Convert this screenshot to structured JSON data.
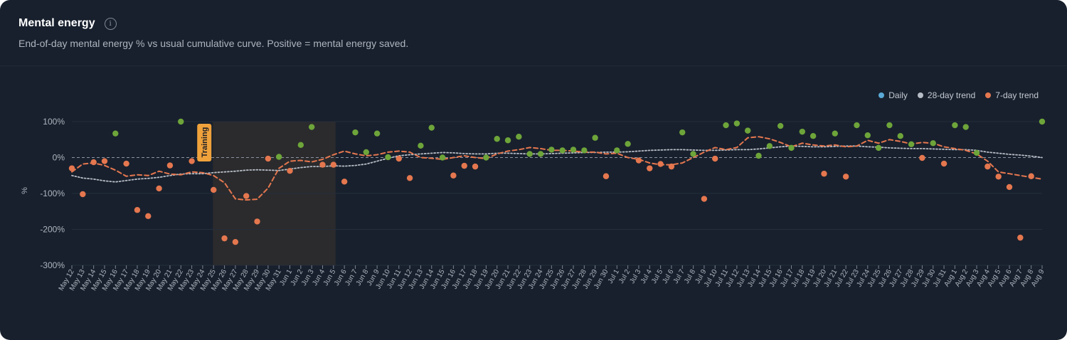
{
  "header": {
    "title": "Mental energy",
    "subtitle": "End-of-day mental energy % vs usual cumulative curve. Positive = mental energy saved."
  },
  "legend": [
    {
      "label": "Daily",
      "color": "#5aa9d6"
    },
    {
      "label": "28-day trend",
      "color": "#b7bdc6"
    },
    {
      "label": "7-day trend",
      "color": "#e5774f"
    }
  ],
  "colors": {
    "positive_point": "#6ea53a",
    "negative_point": "#e5774f",
    "trend28": "#b7bdc6",
    "trend7": "#e5774f",
    "training_band": "#2b2b2d",
    "training_label_bg": "#f0a23b"
  },
  "chart_data": {
    "type": "scatter",
    "title": "Mental energy",
    "ylabel": "%",
    "ylim": [
      -300,
      100
    ],
    "yticks": [
      100,
      0,
      -100,
      -200,
      -300
    ],
    "ytick_labels": [
      "100%",
      "0%",
      "-100%",
      "-200%",
      "-300%"
    ],
    "x": [
      "May 12",
      "May 13",
      "May 14",
      "May 15",
      "May 16",
      "May 17",
      "May 18",
      "May 19",
      "May 20",
      "May 21",
      "May 22",
      "May 23",
      "May 24",
      "May 25",
      "May 26",
      "May 27",
      "May 28",
      "May 29",
      "May 30",
      "May 31",
      "Jun 1",
      "Jun 2",
      "Jun 3",
      "Jun 4",
      "Jun 5",
      "Jun 6",
      "Jun 7",
      "Jun 8",
      "Jun 9",
      "Jun 10",
      "Jun 11",
      "Jun 12",
      "Jun 13",
      "Jun 14",
      "Jun 15",
      "Jun 16",
      "Jun 17",
      "Jun 18",
      "Jun 19",
      "Jun 20",
      "Jun 21",
      "Jun 22",
      "Jun 23",
      "Jun 24",
      "Jun 25",
      "Jun 26",
      "Jun 27",
      "Jun 28",
      "Jun 29",
      "Jun 30",
      "Jul 1",
      "Jul 2",
      "Jul 3",
      "Jul 4",
      "Jul 5",
      "Jul 6",
      "Jul 7",
      "Jul 8",
      "Jul 9",
      "Jul 10",
      "Jul 11",
      "Jul 12",
      "Jul 13",
      "Jul 14",
      "Jul 15",
      "Jul 16",
      "Jul 17",
      "Jul 18",
      "Jul 19",
      "Jul 20",
      "Jul 21",
      "Jul 22",
      "Jul 23",
      "Jul 24",
      "Jul 25",
      "Jul 26",
      "Jul 27",
      "Jul 28",
      "Jul 29",
      "Jul 30",
      "Jul 31",
      "Aug 1",
      "Aug 2",
      "Aug 3",
      "Aug 4",
      "Aug 5",
      "Aug 6",
      "Aug 7",
      "Aug 8",
      "Aug 9"
    ],
    "series": [
      {
        "name": "Daily",
        "values": [
          -30,
          -102,
          -13,
          -10,
          67,
          -17,
          -146,
          -163,
          -86,
          -22,
          100,
          -10,
          null,
          -90,
          -225,
          -235,
          -107,
          -178,
          -3,
          2,
          -37,
          35,
          85,
          -20,
          -20,
          -67,
          70,
          15,
          67,
          1,
          -3,
          -57,
          33,
          83,
          0,
          -50,
          -23,
          -25,
          0,
          52,
          48,
          58,
          10,
          10,
          22,
          20,
          22,
          20,
          55,
          -52,
          20,
          38,
          -8,
          -30,
          -18,
          -25,
          70,
          10,
          -115,
          -3,
          90,
          95,
          75,
          5,
          32,
          88,
          27,
          72,
          60,
          -45,
          67,
          -53,
          90,
          62,
          27,
          90,
          60,
          37,
          -1,
          40,
          -17,
          90,
          85,
          13,
          -25,
          -53,
          -82,
          -223,
          -52,
          100
        ]
      },
      {
        "name": "28-day trend",
        "values": [
          -50,
          -57,
          -60,
          -65,
          -68,
          -64,
          -60,
          -58,
          -55,
          -50,
          -46,
          -45,
          -45,
          -42,
          -40,
          -38,
          -35,
          -34,
          -35,
          -36,
          -32,
          -28,
          -25,
          -25,
          -23,
          -24,
          -22,
          -18,
          -10,
          -2,
          5,
          8,
          10,
          12,
          14,
          13,
          11,
          10,
          10,
          12,
          12,
          11,
          10,
          10,
          11,
          12,
          13,
          14,
          14,
          15,
          15,
          16,
          18,
          20,
          21,
          22,
          22,
          21,
          20,
          20,
          21,
          22,
          22,
          24,
          27,
          30,
          32,
          31,
          30,
          30,
          31,
          32,
          32,
          30,
          29,
          27,
          26,
          25,
          25,
          24,
          23,
          22,
          22,
          20,
          15,
          12,
          9,
          7,
          4,
          0
        ]
      },
      {
        "name": "7-day trend",
        "values": [
          -40,
          -18,
          -15,
          -22,
          -35,
          -52,
          -48,
          -50,
          -38,
          -46,
          -48,
          -40,
          -42,
          -50,
          -70,
          -115,
          -118,
          -116,
          -85,
          -30,
          -10,
          -8,
          -12,
          -5,
          8,
          18,
          10,
          5,
          8,
          15,
          18,
          15,
          0,
          -2,
          -5,
          0,
          5,
          0,
          -3,
          10,
          18,
          22,
          28,
          25,
          20,
          20,
          18,
          15,
          15,
          10,
          12,
          0,
          -5,
          -15,
          -20,
          -20,
          -15,
          0,
          15,
          28,
          22,
          28,
          55,
          58,
          52,
          42,
          30,
          40,
          35,
          32,
          35,
          30,
          32,
          48,
          40,
          50,
          45,
          38,
          42,
          40,
          30,
          25,
          20,
          10,
          -10,
          -40,
          -45,
          -50,
          -55,
          -60
        ]
      }
    ],
    "annotations": [
      {
        "type": "band",
        "label": "Training",
        "from": "May 25",
        "to": "Jun 5"
      }
    ]
  }
}
